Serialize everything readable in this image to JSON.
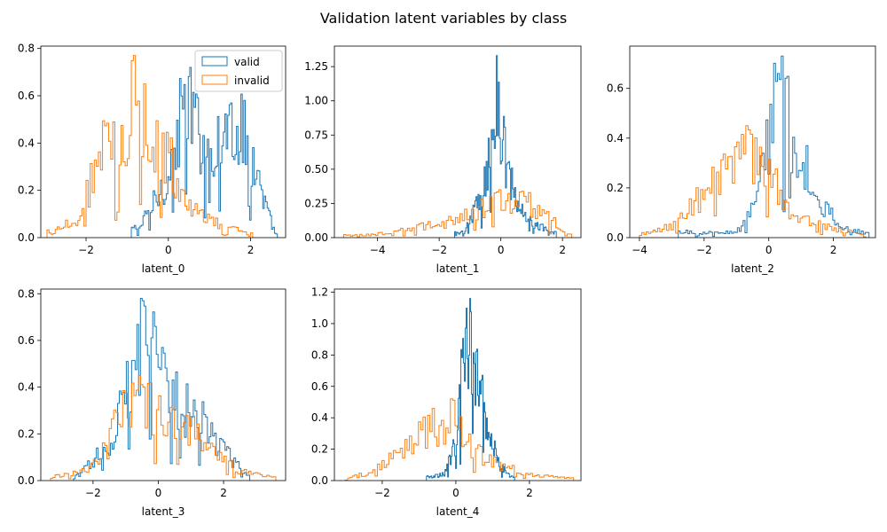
{
  "figure": {
    "title": "Validation latent variables by class"
  },
  "colors": {
    "valid": "#1f77b4",
    "invalid": "#ff7f0e"
  },
  "chart_data": [
    {
      "type": "histogram",
      "xlabel": "latent_0",
      "xlim": [
        -3.1,
        2.85
      ],
      "ylim": [
        0,
        0.81
      ],
      "xticks": [
        -2,
        0,
        2
      ],
      "xtick_labels": [
        "−2",
        "0",
        "2"
      ],
      "yticks": [
        0,
        0.2,
        0.4,
        0.6,
        0.8
      ],
      "ytick_labels": [
        "0.0",
        "0.2",
        "0.4",
        "0.6",
        "0.8"
      ],
      "legend": {
        "placement": "top-right",
        "entries": [
          "valid",
          "invalid"
        ]
      },
      "series": [
        {
          "name": "valid",
          "bin_range": [
            -0.9,
            2.65
          ],
          "peaks": [
            [
              -0.7,
              0.05
            ],
            [
              -0.3,
              0.2
            ],
            [
              0.05,
              0.35
            ],
            [
              0.4,
              0.72
            ],
            [
              0.85,
              0.5
            ],
            [
              1.3,
              0.5
            ],
            [
              1.55,
              0.62
            ],
            [
              1.95,
              0.5
            ],
            [
              2.3,
              0.2
            ],
            [
              2.6,
              0.02
            ]
          ]
        },
        {
          "name": "invalid",
          "bin_range": [
            -2.95,
            2.05
          ],
          "peaks": [
            [
              -2.8,
              0.03
            ],
            [
              -2.2,
              0.1
            ],
            [
              -1.6,
              0.45
            ],
            [
              -1.1,
              0.55
            ],
            [
              -0.85,
              0.77
            ],
            [
              -0.4,
              0.5
            ],
            [
              0,
              0.45
            ],
            [
              0.4,
              0.2
            ],
            [
              0.9,
              0.1
            ],
            [
              1.5,
              0.05
            ],
            [
              2.0,
              0.02
            ]
          ]
        }
      ]
    },
    {
      "type": "histogram",
      "xlabel": "latent_1",
      "xlim": [
        -5.4,
        2.6
      ],
      "ylim": [
        0,
        1.4
      ],
      "xticks": [
        -4,
        -2,
        0,
        2
      ],
      "xtick_labels": [
        "−4",
        "−2",
        "0",
        "2"
      ],
      "yticks": [
        0,
        0.25,
        0.5,
        0.75,
        1.0,
        1.25
      ],
      "ytick_labels": [
        "0.00",
        "0.25",
        "0.50",
        "0.75",
        "1.00",
        "1.25"
      ],
      "series": [
        {
          "name": "valid",
          "bin_range": [
            -1.5,
            1.8
          ],
          "peaks": [
            [
              -1.2,
              0.05
            ],
            [
              -0.6,
              0.4
            ],
            [
              -0.3,
              0.85
            ],
            [
              -0.15,
              1.33
            ],
            [
              0.1,
              0.8
            ],
            [
              0.5,
              0.3
            ],
            [
              1.0,
              0.15
            ],
            [
              1.6,
              0.05
            ]
          ]
        },
        {
          "name": "invalid",
          "bin_range": [
            -5.1,
            2.3
          ],
          "peaks": [
            [
              -5.0,
              0.02
            ],
            [
              -4.0,
              0.03
            ],
            [
              -3.0,
              0.08
            ],
            [
              -2.0,
              0.12
            ],
            [
              -1.0,
              0.22
            ],
            [
              0,
              0.32
            ],
            [
              0.6,
              0.35
            ],
            [
              1.0,
              0.3
            ],
            [
              1.5,
              0.18
            ],
            [
              2.2,
              0.05
            ]
          ]
        }
      ]
    },
    {
      "type": "histogram",
      "xlabel": "latent_2",
      "xlim": [
        -4.3,
        3.3
      ],
      "ylim": [
        0,
        0.77
      ],
      "xticks": [
        -4,
        -2,
        0,
        2
      ],
      "xtick_labels": [
        "−4",
        "−2",
        "0",
        "2"
      ],
      "yticks": [
        0,
        0.2,
        0.4,
        0.6
      ],
      "ytick_labels": [
        "0.0",
        "0.2",
        "0.4",
        "0.6"
      ],
      "series": [
        {
          "name": "valid",
          "bin_range": [
            -2.8,
            3.1
          ],
          "peaks": [
            [
              -2.6,
              0.03
            ],
            [
              -1.5,
              0.02
            ],
            [
              -0.8,
              0.05
            ],
            [
              -0.3,
              0.25
            ],
            [
              0,
              0.5
            ],
            [
              0.3,
              0.73
            ],
            [
              0.7,
              0.55
            ],
            [
              1.2,
              0.35
            ],
            [
              1.7,
              0.15
            ],
            [
              2.3,
              0.05
            ],
            [
              3.0,
              0.02
            ]
          ]
        },
        {
          "name": "invalid",
          "bin_range": [
            -4.0,
            3.0
          ],
          "peaks": [
            [
              -3.8,
              0.02
            ],
            [
              -2.8,
              0.08
            ],
            [
              -2.0,
              0.25
            ],
            [
              -1.4,
              0.37
            ],
            [
              -0.8,
              0.45
            ],
            [
              -0.2,
              0.4
            ],
            [
              0.3,
              0.25
            ],
            [
              0.8,
              0.1
            ],
            [
              1.3,
              0.1
            ],
            [
              2.0,
              0.05
            ],
            [
              2.8,
              0.02
            ]
          ]
        }
      ]
    },
    {
      "type": "histogram",
      "xlabel": "latent_3",
      "xlim": [
        -3.6,
        3.9
      ],
      "ylim": [
        0,
        0.82
      ],
      "xticks": [
        -2,
        0,
        2
      ],
      "xtick_labels": [
        "−2",
        "0",
        "2"
      ],
      "yticks": [
        0,
        0.2,
        0.4,
        0.6,
        0.8
      ],
      "ytick_labels": [
        "0.0",
        "0.2",
        "0.4",
        "0.6",
        "0.8"
      ],
      "series": [
        {
          "name": "valid",
          "bin_range": [
            -2.6,
            2.8
          ],
          "peaks": [
            [
              -2.4,
              0.02
            ],
            [
              -1.5,
              0.15
            ],
            [
              -1.0,
              0.3
            ],
            [
              -0.5,
              0.55
            ],
            [
              -0.25,
              0.78
            ],
            [
              0,
              0.4
            ],
            [
              0.5,
              0.3
            ],
            [
              1.0,
              0.25
            ],
            [
              1.5,
              0.2
            ],
            [
              2.0,
              0.12
            ],
            [
              2.6,
              0.03
            ]
          ]
        },
        {
          "name": "invalid",
          "bin_range": [
            -3.3,
            3.6
          ],
          "peaks": [
            [
              -3.2,
              0.02
            ],
            [
              -2.2,
              0.05
            ],
            [
              -1.5,
              0.2
            ],
            [
              -0.9,
              0.45
            ],
            [
              -0.4,
              0.4
            ],
            [
              0.2,
              0.38
            ],
            [
              0.8,
              0.25
            ],
            [
              1.3,
              0.25
            ],
            [
              1.8,
              0.15
            ],
            [
              2.5,
              0.05
            ],
            [
              3.4,
              0.02
            ]
          ]
        }
      ]
    },
    {
      "type": "histogram",
      "xlabel": "latent_4",
      "xlim": [
        -3.3,
        3.4
      ],
      "ylim": [
        0,
        1.22
      ],
      "xticks": [
        -2,
        0,
        2
      ],
      "xtick_labels": [
        "−2",
        "0",
        "2"
      ],
      "yticks": [
        0,
        0.2,
        0.4,
        0.6,
        0.8,
        1.0,
        1.2
      ],
      "ytick_labels": [
        "0.0",
        "0.2",
        "0.4",
        "0.6",
        "0.8",
        "1.0",
        "1.2"
      ],
      "series": [
        {
          "name": "valid",
          "bin_range": [
            -0.8,
            1.6
          ],
          "peaks": [
            [
              -0.7,
              0.03
            ],
            [
              -0.3,
              0.05
            ],
            [
              0,
              0.3
            ],
            [
              0.2,
              0.9
            ],
            [
              0.3,
              1.16
            ],
            [
              0.6,
              0.85
            ],
            [
              0.9,
              0.4
            ],
            [
              1.2,
              0.12
            ],
            [
              1.5,
              0.03
            ]
          ]
        },
        {
          "name": "invalid",
          "bin_range": [
            -3.0,
            3.2
          ],
          "peaks": [
            [
              -2.9,
              0.02
            ],
            [
              -2.2,
              0.08
            ],
            [
              -1.5,
              0.25
            ],
            [
              -0.8,
              0.45
            ],
            [
              -0.1,
              0.52
            ],
            [
              0.3,
              0.3
            ],
            [
              0.8,
              0.2
            ],
            [
              1.3,
              0.12
            ],
            [
              2.0,
              0.05
            ],
            [
              3.0,
              0.02
            ]
          ]
        }
      ]
    }
  ]
}
